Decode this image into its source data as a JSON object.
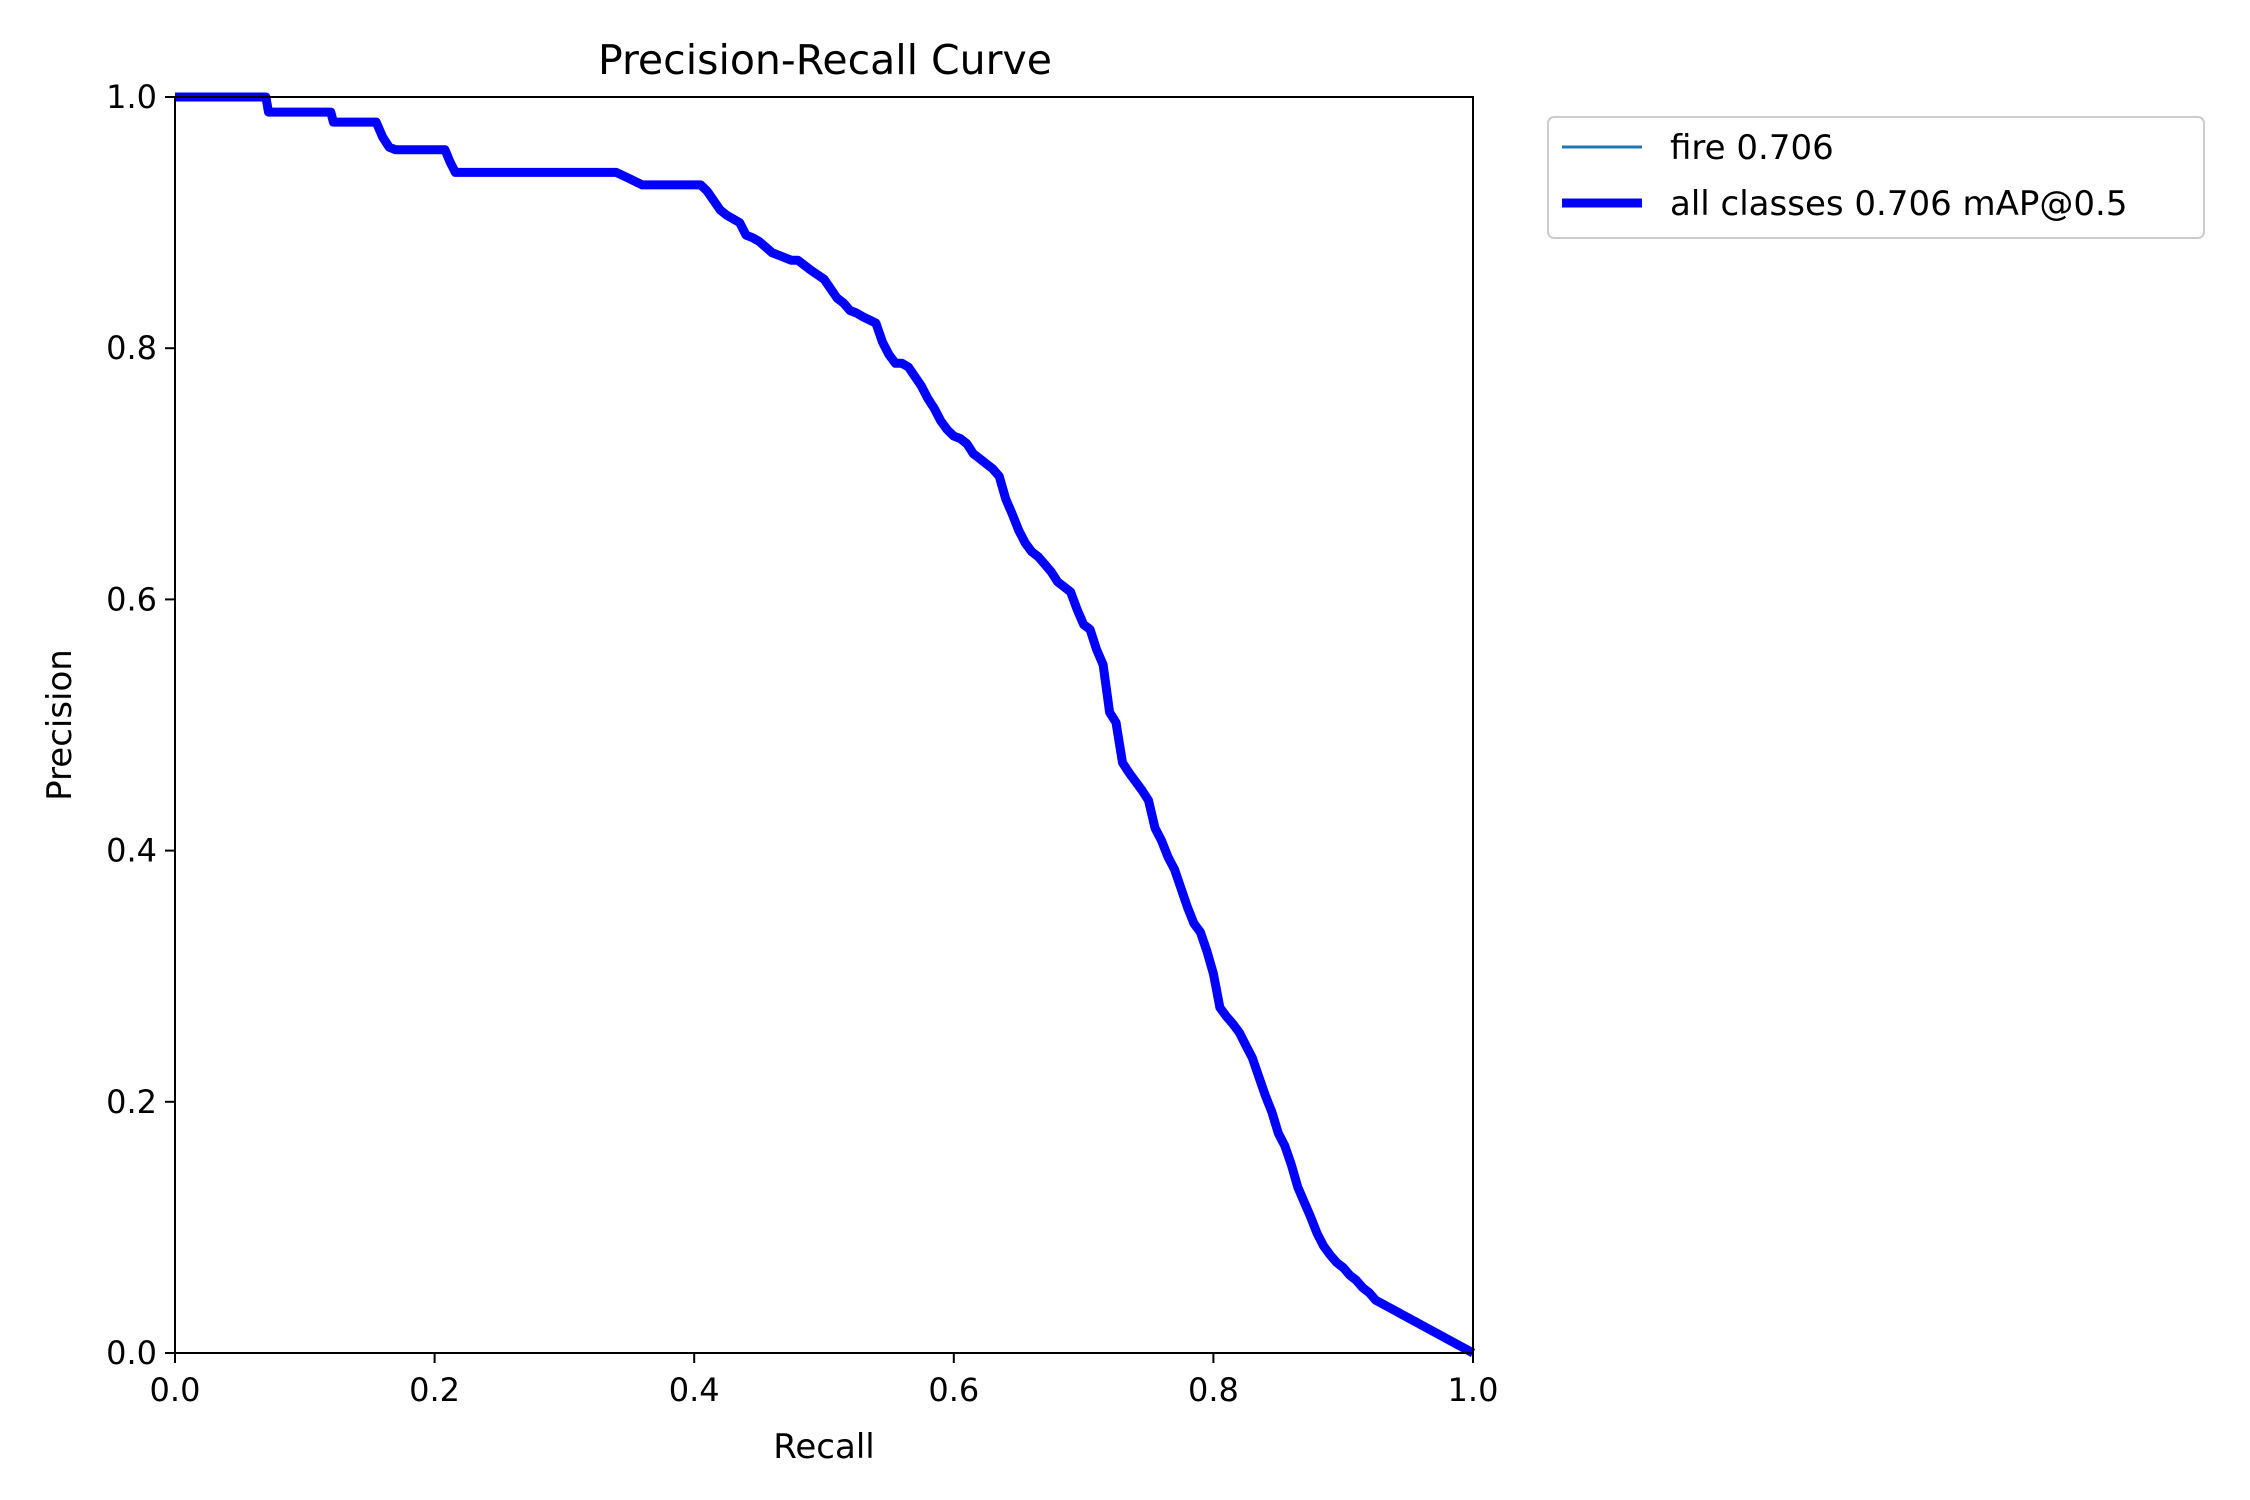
{
  "chart_data": {
    "type": "line",
    "title": "Precision-Recall Curve",
    "xlabel": "Recall",
    "ylabel": "Precision",
    "xlim": [
      0,
      1
    ],
    "ylim": [
      0,
      1
    ],
    "xticks": [
      "0.0",
      "0.2",
      "0.4",
      "0.6",
      "0.8",
      "1.0"
    ],
    "yticks": [
      "0.0",
      "0.2",
      "0.4",
      "0.6",
      "0.8",
      "1.0"
    ],
    "grid": false,
    "legend_position": "outside-upper-right",
    "series": [
      {
        "name": "fire 0.706",
        "color": "#1f77b4",
        "line": "thin",
        "x": [
          0,
          0.07,
          0.072,
          0.12,
          0.122,
          0.155,
          0.16,
          0.165,
          0.17,
          0.208,
          0.212,
          0.216,
          0.32,
          0.34,
          0.35,
          0.36,
          0.405,
          0.41,
          0.42,
          0.425,
          0.435,
          0.44,
          0.445,
          0.45,
          0.46,
          0.47,
          0.475,
          0.48,
          0.49,
          0.5,
          0.51,
          0.515,
          0.52,
          0.525,
          0.53,
          0.54,
          0.545,
          0.55,
          0.555,
          0.56,
          0.565,
          0.575,
          0.58,
          0.585,
          0.59,
          0.595,
          0.6,
          0.605,
          0.61,
          0.615,
          0.62,
          0.625,
          0.63,
          0.635,
          0.64,
          0.645,
          0.65,
          0.655,
          0.66,
          0.665,
          0.67,
          0.675,
          0.68,
          0.685,
          0.69,
          0.695,
          0.7,
          0.705,
          0.71,
          0.715,
          0.72,
          0.725,
          0.73,
          0.735,
          0.74,
          0.745,
          0.75,
          0.755,
          0.76,
          0.765,
          0.77,
          0.775,
          0.78,
          0.785,
          0.79,
          0.795,
          0.8,
          0.805,
          0.81,
          0.815,
          0.82,
          0.825,
          0.83,
          0.835,
          0.84,
          0.845,
          0.85,
          0.855,
          0.86,
          0.865,
          0.87,
          0.875,
          0.88,
          0.885,
          0.89,
          0.895,
          0.9,
          0.905,
          0.91,
          0.915,
          0.92,
          0.925,
          1.0
        ],
        "y": [
          1.0,
          1.0,
          0.988,
          0.988,
          0.98,
          0.98,
          0.968,
          0.96,
          0.958,
          0.958,
          0.948,
          0.94,
          0.94,
          0.94,
          0.935,
          0.93,
          0.93,
          0.925,
          0.91,
          0.906,
          0.9,
          0.89,
          0.888,
          0.885,
          0.876,
          0.872,
          0.87,
          0.87,
          0.862,
          0.855,
          0.84,
          0.836,
          0.83,
          0.828,
          0.825,
          0.82,
          0.805,
          0.795,
          0.788,
          0.788,
          0.785,
          0.77,
          0.76,
          0.752,
          0.742,
          0.735,
          0.73,
          0.728,
          0.724,
          0.716,
          0.712,
          0.708,
          0.704,
          0.698,
          0.68,
          0.668,
          0.655,
          0.645,
          0.638,
          0.634,
          0.628,
          0.622,
          0.614,
          0.61,
          0.606,
          0.592,
          0.58,
          0.576,
          0.56,
          0.548,
          0.51,
          0.502,
          0.47,
          0.462,
          0.455,
          0.448,
          0.44,
          0.418,
          0.408,
          0.395,
          0.385,
          0.37,
          0.355,
          0.342,
          0.335,
          0.32,
          0.302,
          0.275,
          0.268,
          0.262,
          0.255,
          0.245,
          0.235,
          0.22,
          0.205,
          0.192,
          0.175,
          0.165,
          0.15,
          0.132,
          0.12,
          0.108,
          0.095,
          0.085,
          0.078,
          0.072,
          0.068,
          0.062,
          0.058,
          0.052,
          0.048,
          0.042,
          0.0
        ]
      },
      {
        "name": "all classes 0.706 mAP@0.5",
        "color": "#0000ff",
        "line": "thick",
        "same_as": "fire 0.706"
      }
    ]
  }
}
